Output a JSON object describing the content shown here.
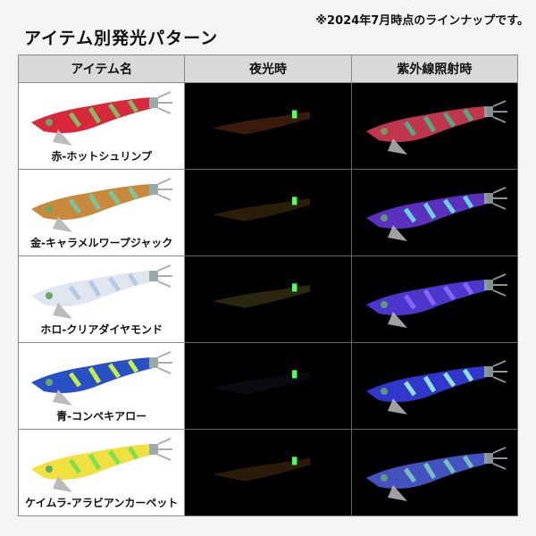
{
  "note": "※2024年7月時点のラインナップです。",
  "title": "アイテム別発光パターン",
  "headers": [
    "アイテム名",
    "夜光時",
    "紫外線照射時"
  ],
  "items": [
    {
      "name": "赤-ホットシュリンプ",
      "body": "#d8283a",
      "accent": "#7fbf6a",
      "uv": "#e0405a",
      "uvAccent": "#3fc08a",
      "night": "#3a1a0a"
    },
    {
      "name": "金-キャラメルワープジャック",
      "body": "#c88a3a",
      "accent": "#7cc4a0",
      "uv": "#6a3ae0",
      "uvAccent": "#6ff0e0",
      "night": "#2a1e08"
    },
    {
      "name": "ホロ-クリアダイヤモンド",
      "body": "#dfe6f0",
      "accent": "#b8c8e0",
      "uv": "#5a40f0",
      "uvAccent": "#8f70ff",
      "night": "#2a2610"
    },
    {
      "name": "青-コンペキアロー",
      "body": "#2a50c8",
      "accent": "#c8f040",
      "uv": "#3a40f0",
      "uvAccent": "#a0ffd0",
      "night": "#0a0a10"
    },
    {
      "name": "ケイムラ-アラビアンカーペット",
      "body": "#f0e040",
      "accent": "#7ce050",
      "uv": "#5060e0",
      "uvAccent": "#80d0c0",
      "night": "#2a1a08"
    }
  ],
  "colors": {
    "header_bg": "#d9d9d9",
    "glow_marker": "#50ff60"
  }
}
